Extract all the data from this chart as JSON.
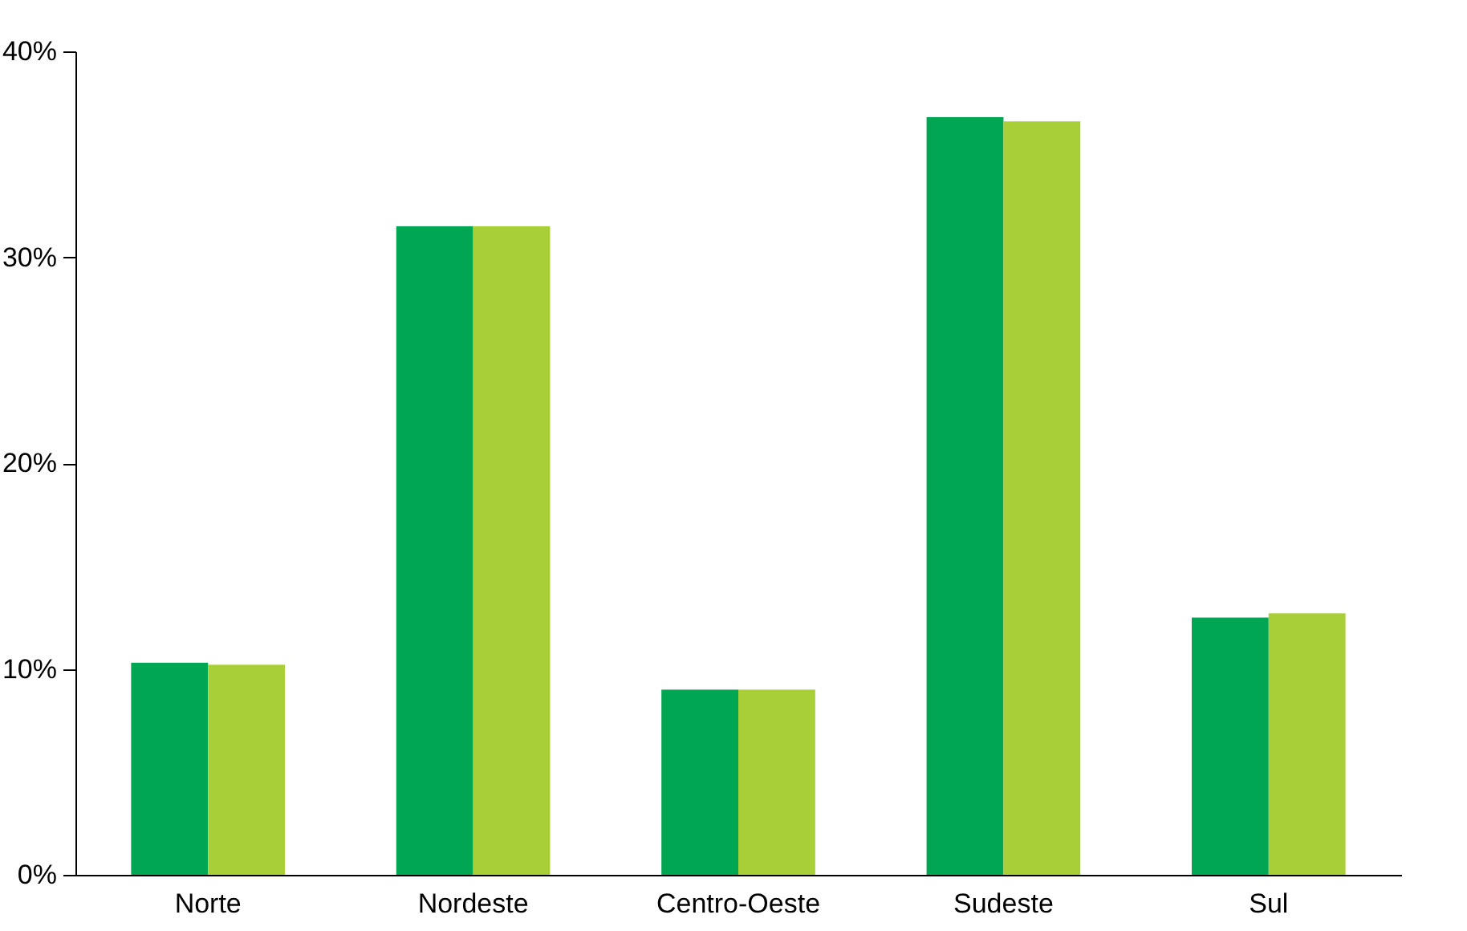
{
  "chart_data": {
    "type": "bar",
    "categories": [
      "Norte",
      "Nordeste",
      "Centro-Oeste",
      "Sudeste",
      "Sul"
    ],
    "series": [
      {
        "color": "#00a651",
        "values": [
          10.3,
          31.5,
          9.0,
          36.8,
          12.5
        ]
      },
      {
        "color": "#a8cf38",
        "values": [
          10.2,
          31.5,
          9.0,
          36.6,
          12.7
        ]
      }
    ],
    "ylim": [
      0,
      40
    ],
    "yticks": [
      {
        "value": 0,
        "label": "0%"
      },
      {
        "value": 10,
        "label": "10%"
      },
      {
        "value": 20,
        "label": "20%"
      },
      {
        "value": 30,
        "label": "30%"
      },
      {
        "value": 40,
        "label": "40%"
      }
    ],
    "grid": false,
    "legend": false
  }
}
